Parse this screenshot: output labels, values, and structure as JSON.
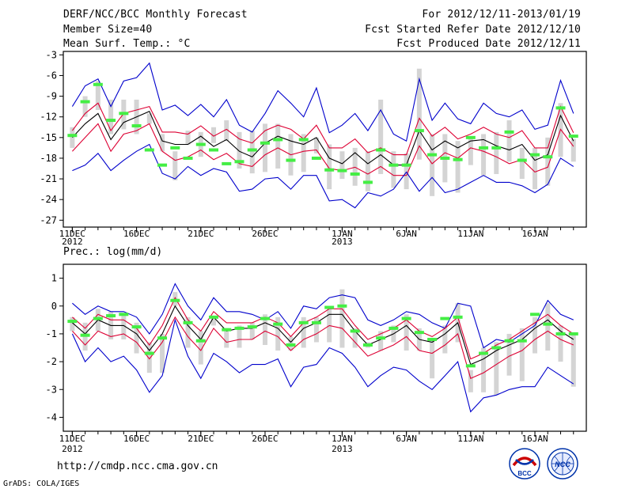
{
  "header": {
    "title": "DERF/NCC/BCC Monthly Forecast",
    "member_size": "Member Size=40",
    "variable": "Mean Surf. Temp.: °C",
    "period": "For 2012/12/11-2013/01/19",
    "started": "Fcst Started Refer Date 2012/12/10",
    "produced": "Fcst Produced Date 2012/12/11"
  },
  "footer": {
    "url": "http://cmdp.ncc.cma.gov.cn",
    "grads": "GrADS: COLA/IGES"
  },
  "logos": {
    "bcc": "BCC",
    "ncc": "NCC"
  },
  "colors": {
    "envelope": "#0000cc",
    "spread": "#dd0033",
    "mean": "#000000",
    "bar": "#d4d4d4",
    "marker": "#44ee44"
  },
  "chart_data": [
    {
      "type": "line",
      "title": "Mean Surf. Temp.: °C",
      "xlabel": "",
      "ylabel": "°C",
      "ylim": [
        -28,
        -2.5
      ],
      "yticks": [
        -3,
        -6,
        -9,
        -12,
        -15,
        -18,
        -21,
        -24,
        -27
      ],
      "xticks": [
        {
          "day": 1,
          "label": "11DEC",
          "sub": "2012"
        },
        {
          "day": 6,
          "label": "16DEC",
          "sub": ""
        },
        {
          "day": 11,
          "label": "21DEC",
          "sub": ""
        },
        {
          "day": 16,
          "label": "26DEC",
          "sub": ""
        },
        {
          "day": 22,
          "label": "1JAN",
          "sub": "2013"
        },
        {
          "day": 27,
          "label": "6JAN",
          "sub": ""
        },
        {
          "day": 32,
          "label": "11JAN",
          "sub": ""
        },
        {
          "day": 37,
          "label": "16JAN",
          "sub": ""
        }
      ],
      "x": [
        1,
        2,
        3,
        4,
        5,
        6,
        7,
        8,
        9,
        10,
        11,
        12,
        13,
        14,
        15,
        16,
        17,
        18,
        19,
        20,
        21,
        22,
        23,
        24,
        25,
        26,
        27,
        28,
        29,
        30,
        31,
        32,
        33,
        34,
        35,
        36,
        37,
        38,
        39,
        40
      ],
      "series": [
        {
          "name": "Max",
          "values": [
            -10.5,
            -7.5,
            -6.5,
            -10.5,
            -6.8,
            -6.3,
            -4.2,
            -11.0,
            -10.3,
            -11.8,
            -10.2,
            -12.0,
            -9.5,
            -13.2,
            -14.2,
            -11.5,
            -8.2,
            -10.0,
            -12.0,
            -7.8,
            -14.3,
            -13.2,
            -11.5,
            -14.0,
            -11.0,
            -14.5,
            -15.5,
            -6.5,
            -12.5,
            -10.0,
            -12.3,
            -13.0,
            -10.0,
            -11.5,
            -12.0,
            -11.0,
            -13.8,
            -13.2,
            -6.7,
            -11.5
          ]
        },
        {
          "name": "Upper",
          "values": [
            -14.0,
            -11.5,
            -10.0,
            -14.0,
            -11.5,
            -11.0,
            -10.5,
            -14.2,
            -14.2,
            -14.5,
            -13.3,
            -14.8,
            -13.8,
            -15.2,
            -15.8,
            -14.0,
            -13.2,
            -13.8,
            -15.2,
            -13.2,
            -16.5,
            -16.5,
            -15.2,
            -17.2,
            -16.5,
            -17.5,
            -17.5,
            -12.2,
            -14.8,
            -13.5,
            -15.2,
            -14.5,
            -13.5,
            -14.5,
            -15.0,
            -14.0,
            -16.5,
            -16.5,
            -10.5,
            -14.3
          ]
        },
        {
          "name": "Mean",
          "values": [
            -15.0,
            -13.0,
            -11.5,
            -15.3,
            -12.8,
            -12.0,
            -11.2,
            -15.5,
            -16.0,
            -16.0,
            -14.8,
            -16.3,
            -15.3,
            -17.0,
            -17.8,
            -15.8,
            -14.8,
            -15.5,
            -16.0,
            -15.0,
            -18.0,
            -18.8,
            -17.2,
            -18.8,
            -17.5,
            -19.0,
            -19.0,
            -14.0,
            -16.8,
            -15.5,
            -16.5,
            -15.5,
            -15.3,
            -16.2,
            -16.8,
            -16.0,
            -18.3,
            -17.5,
            -11.8,
            -15.5
          ]
        },
        {
          "name": "Lower",
          "values": [
            -17.0,
            -15.0,
            -13.0,
            -17.0,
            -14.5,
            -14.0,
            -13.0,
            -17.0,
            -18.3,
            -17.8,
            -16.8,
            -18.2,
            -17.3,
            -18.8,
            -19.2,
            -17.5,
            -16.5,
            -17.5,
            -17.0,
            -16.8,
            -19.5,
            -19.8,
            -19.3,
            -20.3,
            -19.2,
            -20.5,
            -20.5,
            -16.2,
            -18.8,
            -17.2,
            -18.0,
            -16.5,
            -17.0,
            -17.8,
            -18.8,
            -18.2,
            -20.0,
            -19.3,
            -13.8,
            -16.3
          ]
        },
        {
          "name": "Min",
          "values": [
            -19.8,
            -19.0,
            -17.3,
            -19.8,
            -18.3,
            -17.0,
            -16.0,
            -20.2,
            -21.0,
            -19.2,
            -20.5,
            -19.5,
            -20.0,
            -22.8,
            -22.5,
            -21.0,
            -20.8,
            -22.5,
            -20.5,
            -20.5,
            -24.2,
            -24.0,
            -25.2,
            -23.0,
            -23.5,
            -22.5,
            -20.0,
            -22.8,
            -20.8,
            -23.0,
            -22.5,
            -21.5,
            -20.5,
            -21.5,
            -21.5,
            -22.0,
            -23.0,
            -21.8,
            -18.0,
            -19.2
          ]
        }
      ],
      "bars": {
        "name": "Ensemble spread",
        "low": [
          -16.5,
          -12.0,
          -11.0,
          -14.5,
          -13.8,
          -14.5,
          -13.0,
          -17.0,
          -21.2,
          -16.0,
          -17.8,
          -15.8,
          -15.5,
          -19.5,
          -20.2,
          -20.0,
          -19.5,
          -20.5,
          -20.0,
          -17.3,
          -22.5,
          -21.0,
          -22.0,
          -22.8,
          -20.3,
          -22.3,
          -22.5,
          -18.2,
          -23.5,
          -21.5,
          -23.0,
          -19.0,
          -20.5,
          -20.3,
          -18.5,
          -21.0,
          -22.5,
          -22.0,
          -17.8,
          -18.5
        ],
        "high": [
          -13.5,
          -9.0,
          -6.8,
          -9.5,
          -9.5,
          -9.5,
          -11.5,
          -14.5,
          -17.0,
          -14.0,
          -14.2,
          -13.5,
          -12.5,
          -14.2,
          -14.0,
          -13.0,
          -13.0,
          -14.5,
          -14.5,
          -15.0,
          -16.0,
          -17.0,
          -16.5,
          -17.0,
          -9.5,
          -17.0,
          -17.3,
          -5.0,
          -14.5,
          -14.5,
          -15.5,
          -15.0,
          -14.5,
          -14.2,
          -12.5,
          -16.5,
          -16.5,
          -15.0,
          -10.0,
          -15.2
        ]
      },
      "markers": {
        "name": "Observation",
        "values": [
          -14.7,
          -9.8,
          -7.3,
          -12.5,
          -11.5,
          -13.3,
          -16.8,
          -19.0,
          -16.5,
          -18.0,
          -16.0,
          -16.8,
          -18.8,
          -18.5,
          -16.8,
          -15.8,
          -15.3,
          -18.3,
          -15.3,
          -18.0,
          -19.7,
          -19.8,
          -20.3,
          -21.5,
          -16.8,
          -19.0,
          -19.0,
          -14.0,
          -17.5,
          -18.0,
          -18.2,
          -15.0,
          -16.5,
          -16.5,
          -14.2,
          -18.3,
          -17.5,
          -17.8,
          -10.7,
          -14.8
        ]
      }
    },
    {
      "type": "line",
      "title": "Prec.: log(mm/d)",
      "xlabel": "",
      "ylabel": "log(mm/d)",
      "ylim": [
        -4.5,
        1.5
      ],
      "yticks": [
        1,
        0,
        -1,
        -2,
        -3,
        -4
      ],
      "xticks": [
        {
          "day": 1,
          "label": "11DEC",
          "sub": "2012"
        },
        {
          "day": 6,
          "label": "16DEC",
          "sub": ""
        },
        {
          "day": 11,
          "label": "21DEC",
          "sub": ""
        },
        {
          "day": 16,
          "label": "26DEC",
          "sub": ""
        },
        {
          "day": 22,
          "label": "1JAN",
          "sub": "2013"
        },
        {
          "day": 27,
          "label": "6JAN",
          "sub": ""
        },
        {
          "day": 32,
          "label": "11JAN",
          "sub": ""
        },
        {
          "day": 37,
          "label": "16JAN",
          "sub": ""
        }
      ],
      "x": [
        1,
        2,
        3,
        4,
        5,
        6,
        7,
        8,
        9,
        10,
        11,
        12,
        13,
        14,
        15,
        16,
        17,
        18,
        19,
        20,
        21,
        22,
        23,
        24,
        25,
        26,
        27,
        28,
        29,
        30,
        31,
        32,
        33,
        34,
        35,
        36,
        37,
        38,
        39,
        40
      ],
      "series": [
        {
          "name": "Max",
          "values": [
            0.1,
            -0.3,
            0.0,
            -0.2,
            -0.2,
            -0.4,
            -1.0,
            -0.3,
            0.8,
            0.0,
            -0.5,
            0.3,
            -0.2,
            -0.2,
            -0.3,
            -0.5,
            -0.2,
            -0.8,
            0.0,
            -0.1,
            0.3,
            0.4,
            0.3,
            -0.5,
            -0.7,
            -0.5,
            -0.2,
            -0.3,
            -0.6,
            -0.8,
            0.1,
            0.0,
            -1.5,
            -1.2,
            -1.3,
            -1.0,
            -0.7,
            0.2,
            -0.3,
            -0.5
          ]
        },
        {
          "name": "Upper",
          "values": [
            -0.4,
            -0.8,
            -0.3,
            -0.5,
            -0.5,
            -0.8,
            -1.4,
            -0.7,
            0.3,
            -0.5,
            -0.9,
            -0.2,
            -0.6,
            -0.6,
            -0.6,
            -0.4,
            -0.6,
            -1.1,
            -0.6,
            -0.4,
            -0.1,
            -0.1,
            -0.7,
            -1.2,
            -1.0,
            -0.8,
            -0.5,
            -0.9,
            -1.1,
            -0.8,
            -0.4,
            -1.9,
            -1.7,
            -1.4,
            -1.2,
            -0.9,
            -0.6,
            -0.3,
            -0.7,
            -1.0
          ]
        },
        {
          "name": "Mean",
          "values": [
            -0.6,
            -1.0,
            -0.5,
            -0.7,
            -0.7,
            -1.0,
            -1.6,
            -1.0,
            0.0,
            -0.7,
            -1.2,
            -0.4,
            -0.9,
            -0.8,
            -0.8,
            -0.6,
            -0.8,
            -1.3,
            -0.8,
            -0.6,
            -0.3,
            -0.3,
            -0.9,
            -1.4,
            -1.2,
            -1.0,
            -0.7,
            -1.2,
            -1.3,
            -1.0,
            -0.6,
            -2.1,
            -1.9,
            -1.6,
            -1.4,
            -1.2,
            -0.8,
            -0.5,
            -0.9,
            -1.2
          ]
        },
        {
          "name": "Lower",
          "values": [
            -0.9,
            -1.4,
            -0.9,
            -1.1,
            -1.0,
            -1.3,
            -1.9,
            -1.3,
            -0.4,
            -1.1,
            -1.6,
            -0.8,
            -1.3,
            -1.2,
            -1.2,
            -0.9,
            -1.1,
            -1.6,
            -1.2,
            -1.0,
            -0.7,
            -0.8,
            -1.3,
            -1.8,
            -1.6,
            -1.4,
            -1.1,
            -1.6,
            -1.7,
            -1.4,
            -1.0,
            -2.6,
            -2.4,
            -2.1,
            -1.8,
            -1.6,
            -1.2,
            -0.9,
            -1.2,
            -1.4
          ]
        },
        {
          "name": "Min",
          "values": [
            -1.0,
            -2.0,
            -1.5,
            -2.0,
            -1.8,
            -2.3,
            -3.1,
            -2.5,
            -0.5,
            -1.8,
            -2.6,
            -1.7,
            -2.0,
            -2.4,
            -2.1,
            -2.1,
            -1.9,
            -2.9,
            -2.2,
            -2.1,
            -1.5,
            -1.7,
            -2.2,
            -2.9,
            -2.5,
            -2.2,
            -2.3,
            -2.7,
            -3.0,
            -2.5,
            -2.0,
            -3.8,
            -3.3,
            -3.2,
            -3.0,
            -2.9,
            -2.9,
            -2.2,
            -2.5,
            -2.8
          ]
        }
      ],
      "bars": {
        "name": "Ensemble spread",
        "low": [
          -0.9,
          -1.6,
          -0.9,
          -1.2,
          -1.2,
          -1.7,
          -2.4,
          -2.4,
          0.0,
          -1.5,
          -2.1,
          -0.7,
          -1.5,
          -1.5,
          -1.2,
          -1.4,
          -1.6,
          -1.6,
          -1.5,
          -1.3,
          -1.3,
          -1.5,
          -1.5,
          -1.5,
          -1.6,
          -1.3,
          -1.6,
          -1.6,
          -2.6,
          -1.7,
          -1.3,
          -3.1,
          -3.1,
          -3.2,
          -2.5,
          -2.7,
          -1.7,
          -1.6,
          -2.0,
          -2.9
        ],
        "high": [
          -0.4,
          -0.6,
          -0.1,
          -0.2,
          -0.3,
          -0.6,
          -1.3,
          -1.0,
          0.5,
          -0.4,
          -0.9,
          -0.4,
          -0.8,
          -0.7,
          -0.6,
          -0.3,
          -0.4,
          -1.1,
          -0.4,
          -0.4,
          0.0,
          0.6,
          -0.8,
          -1.3,
          -0.9,
          -0.7,
          -0.3,
          -0.8,
          -1.2,
          -0.7,
          0.1,
          -2.3,
          -1.5,
          -1.3,
          -1.0,
          -0.8,
          -0.4,
          0.1,
          -0.7,
          -1.0
        ]
      },
      "markers": {
        "name": "Observation",
        "values": [
          -0.55,
          -1.05,
          -0.45,
          -0.35,
          -0.3,
          -0.75,
          -1.7,
          -1.15,
          0.2,
          -0.6,
          -1.25,
          -0.4,
          -0.85,
          -0.8,
          -0.75,
          -0.45,
          -0.65,
          -1.4,
          -0.6,
          -0.6,
          -0.05,
          0.0,
          -0.9,
          -1.4,
          -1.15,
          -0.8,
          -0.45,
          -0.95,
          -1.2,
          -0.45,
          -0.4,
          -2.15,
          -1.7,
          -1.5,
          -1.25,
          -1.25,
          -0.3,
          -0.65,
          -1.0,
          -1.0
        ]
      }
    }
  ]
}
